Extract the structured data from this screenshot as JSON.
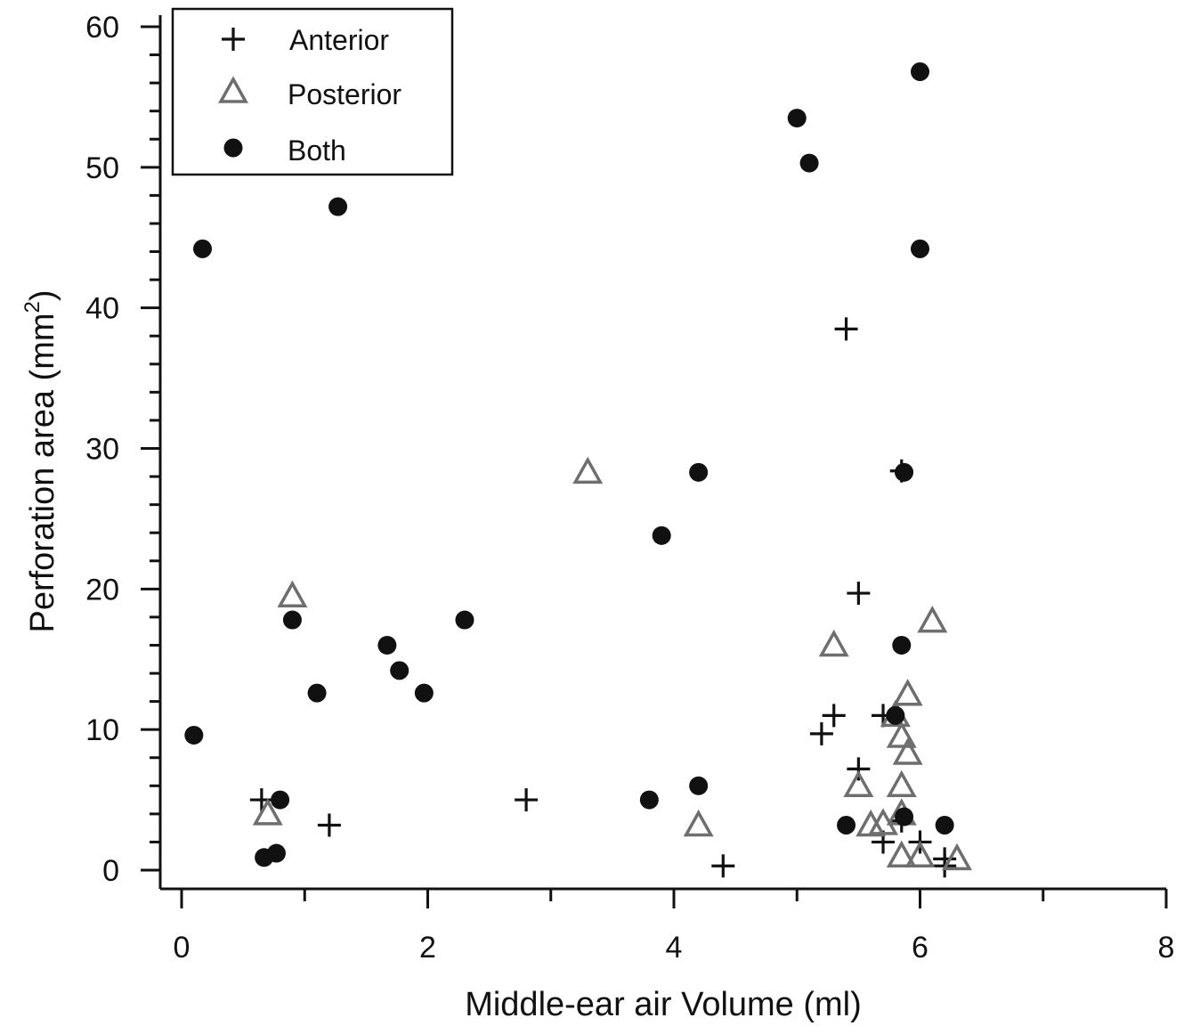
{
  "chart_data": {
    "type": "scatter",
    "title": "",
    "xlabel": "Middle-ear air Volume (ml)",
    "ylabel_main": "Perforation area (mm",
    "ylabel_sup": "2",
    "ylabel_close": ")",
    "xlim": [
      0,
      8
    ],
    "ylim": [
      0,
      60
    ],
    "x_ticks": [
      0,
      2,
      4,
      6,
      8
    ],
    "y_ticks": [
      0,
      10,
      20,
      30,
      40,
      50,
      60
    ],
    "grid": false,
    "legend_position": "top-left",
    "series": [
      {
        "name": "Anterior",
        "marker": "plus",
        "color": "#111111",
        "points": [
          [
            0.65,
            5.0
          ],
          [
            1.2,
            3.2
          ],
          [
            2.8,
            5.0
          ],
          [
            4.4,
            0.3
          ],
          [
            5.2,
            9.7
          ],
          [
            5.3,
            11.0
          ],
          [
            5.4,
            38.5
          ],
          [
            5.5,
            19.7
          ],
          [
            5.5,
            7.2
          ],
          [
            5.7,
            11.0
          ],
          [
            5.7,
            2.0
          ],
          [
            5.85,
            28.4
          ],
          [
            5.85,
            3.5
          ],
          [
            6.0,
            2.0
          ],
          [
            6.2,
            0.8
          ],
          [
            6.2,
            0.3
          ]
        ]
      },
      {
        "name": "Posterior",
        "marker": "triangle",
        "color": "#6e6e6e",
        "points": [
          [
            0.7,
            4.0
          ],
          [
            0.9,
            19.5
          ],
          [
            3.3,
            28.3
          ],
          [
            4.2,
            3.2
          ],
          [
            5.3,
            16.0
          ],
          [
            5.5,
            6.0
          ],
          [
            5.6,
            3.2
          ],
          [
            5.7,
            3.3
          ],
          [
            5.8,
            11.0
          ],
          [
            5.85,
            9.5
          ],
          [
            5.85,
            6.0
          ],
          [
            5.85,
            4.0
          ],
          [
            5.85,
            1.0
          ],
          [
            5.9,
            12.5
          ],
          [
            5.9,
            8.3
          ],
          [
            6.0,
            1.0
          ],
          [
            6.1,
            17.7
          ],
          [
            6.3,
            0.8
          ]
        ]
      },
      {
        "name": "Both",
        "marker": "circle",
        "color": "#111111",
        "points": [
          [
            0.1,
            9.6
          ],
          [
            0.17,
            44.2
          ],
          [
            0.67,
            0.9
          ],
          [
            0.77,
            1.2
          ],
          [
            0.8,
            5.0
          ],
          [
            0.9,
            17.8
          ],
          [
            1.1,
            12.6
          ],
          [
            1.27,
            47.2
          ],
          [
            1.67,
            16.0
          ],
          [
            1.77,
            14.2
          ],
          [
            1.97,
            12.6
          ],
          [
            2.3,
            17.8
          ],
          [
            3.8,
            5.0
          ],
          [
            3.9,
            23.8
          ],
          [
            4.2,
            28.3
          ],
          [
            4.2,
            6.0
          ],
          [
            5.0,
            53.5
          ],
          [
            5.1,
            50.3
          ],
          [
            5.4,
            3.2
          ],
          [
            5.8,
            11.0
          ],
          [
            5.85,
            16.0
          ],
          [
            5.87,
            28.3
          ],
          [
            5.87,
            3.8
          ],
          [
            6.0,
            56.8
          ],
          [
            6.0,
            44.2
          ],
          [
            6.2,
            3.2
          ]
        ]
      }
    ]
  }
}
